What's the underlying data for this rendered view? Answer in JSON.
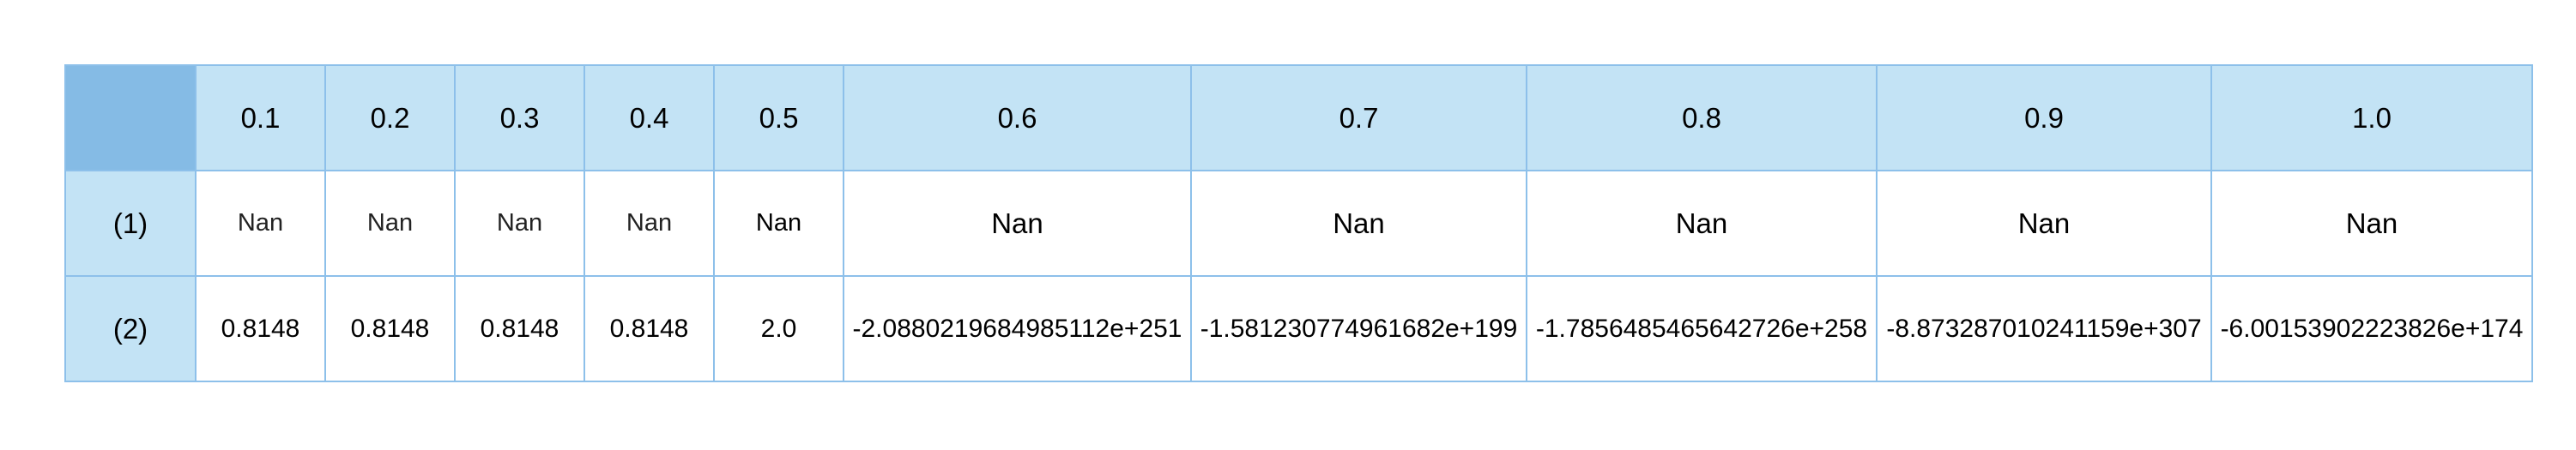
{
  "table": {
    "column_headers": [
      "0.1",
      "0.2",
      "0.3",
      "0.4",
      "0.5",
      "0.6",
      "0.7",
      "0.8",
      "0.9",
      "1.0"
    ],
    "rows": [
      {
        "label": "(1)",
        "cells": [
          "Nan",
          "Nan",
          "Nan",
          "Nan",
          "Nan",
          "Nan",
          "Nan",
          "Nan",
          "Nan",
          "Nan"
        ]
      },
      {
        "label": "(2)",
        "cells": [
          "0.8148",
          "0.8148",
          "0.8148",
          "0.8148",
          "2.0",
          "-2.0880219684985112e+251",
          "-1.581230774961682e+199",
          "-1.7856485465642726e+258",
          "-8.873287010241159e+307",
          "-6.00153902223826e+174"
        ]
      }
    ]
  },
  "colors": {
    "header_background": "#c3e3f5",
    "corner_background": "#85bbe5",
    "border": "#8dc0ea"
  }
}
